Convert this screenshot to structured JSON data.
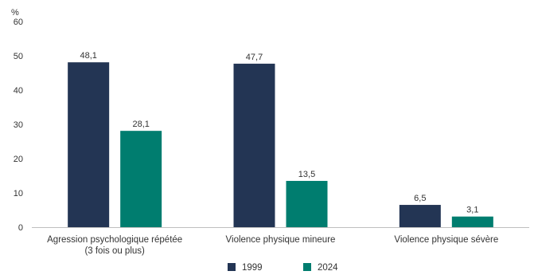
{
  "chart_data": {
    "type": "bar",
    "ylabel": "%",
    "ylim": [
      0,
      60
    ],
    "yticks": [
      0,
      10,
      20,
      30,
      40,
      50,
      60
    ],
    "grid": false,
    "legend_position": "bottom-center",
    "categories": [
      [
        "Agression psychologique répétée",
        "(3 fois ou plus)"
      ],
      [
        "Violence physique mineure"
      ],
      [
        "Violence physique sévère"
      ]
    ],
    "series": [
      {
        "name": "1999",
        "color": "#233554",
        "values": [
          48.1,
          47.7,
          6.5
        ],
        "labels": [
          "48,1",
          "47,7",
          "6,5"
        ]
      },
      {
        "name": "2024",
        "color": "#007d6f",
        "values": [
          28.1,
          13.5,
          3.1
        ],
        "labels": [
          "28,1",
          "13,5",
          "3,1"
        ]
      }
    ]
  }
}
